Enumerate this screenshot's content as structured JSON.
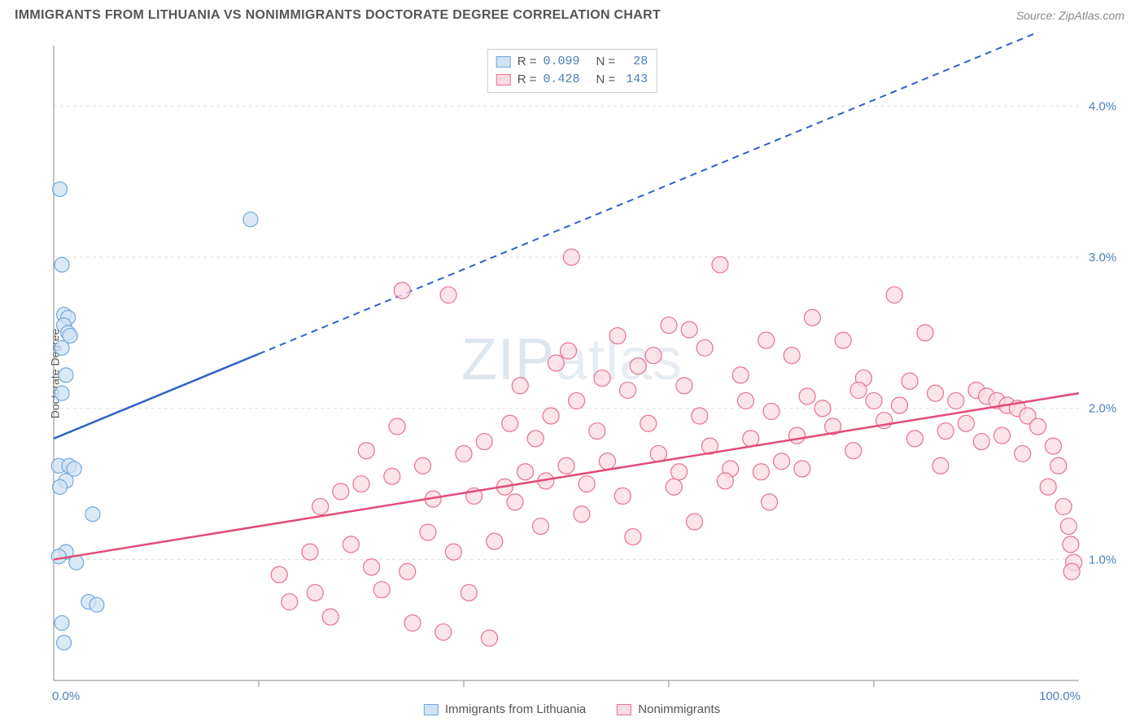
{
  "title": "IMMIGRANTS FROM LITHUANIA VS NONIMMIGRANTS DOCTORATE DEGREE CORRELATION CHART",
  "source_prefix": "Source: ",
  "source_name": "ZipAtlas.com",
  "ylabel": "Doctorate Degree",
  "watermark": {
    "bold": "ZIP",
    "light": "atlas"
  },
  "chart": {
    "type": "scatter",
    "xlim": [
      0,
      100
    ],
    "ylim": [
      0.2,
      4.4
    ],
    "x_corner_left": "0.0%",
    "x_corner_right": "100.0%",
    "y_ticks": [
      1.0,
      2.0,
      3.0,
      4.0
    ],
    "y_tick_labels": [
      "1.0%",
      "2.0%",
      "3.0%",
      "4.0%"
    ],
    "grid_color": "#dddddd",
    "axis_color": "#888888",
    "background": "#ffffff",
    "tick_label_color": "#4a7ebb",
    "series": [
      {
        "name": "Immigrants from Lithuania",
        "marker_fill": "#cfe2f3",
        "marker_stroke": "#6fa8dc",
        "marker_radius": 9,
        "line_color": "#2e62c9",
        "line_solid_xmax": 20,
        "regression": {
          "y_at_x0": 1.8,
          "y_at_x100": 4.6
        },
        "stats": {
          "R": "0.099",
          "N": "28"
        },
        "points": [
          [
            0.6,
            3.45
          ],
          [
            19.2,
            3.25
          ],
          [
            0.8,
            2.95
          ],
          [
            1.0,
            2.62
          ],
          [
            1.4,
            2.6
          ],
          [
            1.0,
            2.55
          ],
          [
            1.4,
            2.5
          ],
          [
            1.6,
            2.48
          ],
          [
            0.8,
            2.4
          ],
          [
            1.2,
            2.22
          ],
          [
            0.8,
            2.1
          ],
          [
            0.5,
            1.62
          ],
          [
            1.5,
            1.62
          ],
          [
            2.0,
            1.6
          ],
          [
            1.2,
            1.52
          ],
          [
            0.6,
            1.48
          ],
          [
            3.8,
            1.3
          ],
          [
            1.2,
            1.05
          ],
          [
            0.5,
            1.02
          ],
          [
            2.2,
            0.98
          ],
          [
            3.4,
            0.72
          ],
          [
            4.2,
            0.7
          ],
          [
            0.8,
            0.58
          ],
          [
            1.0,
            0.45
          ]
        ]
      },
      {
        "name": "Nonimmigrants",
        "marker_fill": "#fadbe3",
        "marker_stroke": "#e86f94",
        "marker_radius": 10,
        "line_color": "#e34b77",
        "line_solid_xmax": 100,
        "regression": {
          "y_at_x0": 1.0,
          "y_at_x100": 2.1
        },
        "stats": {
          "R": "0.428",
          "N": "143"
        },
        "points": [
          [
            50.5,
            3.0
          ],
          [
            65,
            2.95
          ],
          [
            82,
            2.75
          ],
          [
            34,
            2.78
          ],
          [
            38.5,
            2.75
          ],
          [
            74,
            2.6
          ],
          [
            60,
            2.55
          ],
          [
            55,
            2.48
          ],
          [
            62,
            2.52
          ],
          [
            77,
            2.45
          ],
          [
            85,
            2.5
          ],
          [
            72,
            2.35
          ],
          [
            49,
            2.3
          ],
          [
            57,
            2.28
          ],
          [
            67,
            2.22
          ],
          [
            79,
            2.2
          ],
          [
            83.5,
            2.18
          ],
          [
            90,
            2.12
          ],
          [
            88,
            2.05
          ],
          [
            91,
            2.08
          ],
          [
            92,
            2.05
          ],
          [
            93,
            2.02
          ],
          [
            94,
            2.0
          ],
          [
            95,
            1.95
          ],
          [
            86,
            2.1
          ],
          [
            80,
            2.05
          ],
          [
            75,
            2.0
          ],
          [
            70,
            1.98
          ],
          [
            63,
            1.95
          ],
          [
            58,
            1.9
          ],
          [
            53,
            1.85
          ],
          [
            47,
            1.8
          ],
          [
            42,
            1.78
          ],
          [
            40,
            1.7
          ],
          [
            36,
            1.62
          ],
          [
            33,
            1.55
          ],
          [
            30,
            1.5
          ],
          [
            28,
            1.45
          ],
          [
            46,
            1.58
          ],
          [
            50,
            1.62
          ],
          [
            54,
            1.65
          ],
          [
            59,
            1.7
          ],
          [
            64,
            1.75
          ],
          [
            68,
            1.8
          ],
          [
            72.5,
            1.82
          ],
          [
            76,
            1.88
          ],
          [
            81,
            1.92
          ],
          [
            48,
            1.52
          ],
          [
            44,
            1.48
          ],
          [
            52,
            1.5
          ],
          [
            61,
            1.58
          ],
          [
            66,
            1.6
          ],
          [
            71,
            1.65
          ],
          [
            78,
            1.72
          ],
          [
            84,
            1.8
          ],
          [
            87,
            1.85
          ],
          [
            89,
            1.9
          ],
          [
            37,
            1.4
          ],
          [
            41,
            1.42
          ],
          [
            45,
            1.38
          ],
          [
            26,
            1.35
          ],
          [
            25,
            1.05
          ],
          [
            22,
            0.9
          ],
          [
            29,
            1.1
          ],
          [
            31,
            0.95
          ],
          [
            34.5,
            0.92
          ],
          [
            23,
            0.72
          ],
          [
            25.5,
            0.78
          ],
          [
            27,
            0.62
          ],
          [
            32,
            0.8
          ],
          [
            35,
            0.58
          ],
          [
            38,
            0.52
          ],
          [
            40.5,
            0.78
          ],
          [
            42.5,
            0.48
          ],
          [
            36.5,
            1.18
          ],
          [
            39,
            1.05
          ],
          [
            43,
            1.12
          ],
          [
            55.5,
            1.42
          ],
          [
            60.5,
            1.48
          ],
          [
            65.5,
            1.52
          ],
          [
            69,
            1.58
          ],
          [
            73,
            1.6
          ],
          [
            98,
            1.62
          ],
          [
            97,
            1.48
          ],
          [
            98.5,
            1.35
          ],
          [
            99,
            1.22
          ],
          [
            99.2,
            1.1
          ],
          [
            99.5,
            0.98
          ],
          [
            99.3,
            0.92
          ],
          [
            97.5,
            1.75
          ],
          [
            96,
            1.88
          ],
          [
            51,
            2.05
          ],
          [
            56,
            2.12
          ],
          [
            61.5,
            2.15
          ],
          [
            48.5,
            1.95
          ],
          [
            44.5,
            1.9
          ],
          [
            67.5,
            2.05
          ],
          [
            73.5,
            2.08
          ],
          [
            78.5,
            2.12
          ],
          [
            82.5,
            2.02
          ],
          [
            53.5,
            2.2
          ],
          [
            58.5,
            2.35
          ],
          [
            63.5,
            2.4
          ],
          [
            69.5,
            2.45
          ],
          [
            45.5,
            2.15
          ],
          [
            50.2,
            2.38
          ],
          [
            56.5,
            1.15
          ],
          [
            62.5,
            1.25
          ],
          [
            51.5,
            1.3
          ],
          [
            47.5,
            1.22
          ],
          [
            90.5,
            1.78
          ],
          [
            92.5,
            1.82
          ],
          [
            94.5,
            1.7
          ],
          [
            86.5,
            1.62
          ],
          [
            30.5,
            1.72
          ],
          [
            33.5,
            1.88
          ],
          [
            69.8,
            1.38
          ]
        ]
      }
    ]
  },
  "legend_bottom": [
    {
      "label": "Immigrants from Lithuania",
      "fill": "#cfe2f3",
      "stroke": "#6fa8dc"
    },
    {
      "label": "Nonimmigrants",
      "fill": "#fadbe3",
      "stroke": "#e86f94"
    }
  ]
}
